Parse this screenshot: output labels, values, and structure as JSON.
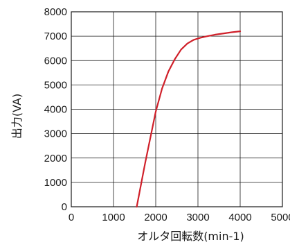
{
  "chart_data": {
    "type": "line",
    "title": "",
    "xlabel": "オルタ回転数(min-1)",
    "ylabel": "出力(VA)",
    "xlim": [
      0,
      5000
    ],
    "ylim": [
      0,
      8000
    ],
    "xticks": [
      0,
      1000,
      2000,
      3000,
      4000,
      5000
    ],
    "yticks": [
      0,
      1000,
      2000,
      3000,
      4000,
      5000,
      6000,
      7000,
      8000
    ],
    "grid": true,
    "series": [
      {
        "color": "#d0202a",
        "x": [
          1550,
          1750,
          2000,
          2150,
          2300,
          2450,
          2600,
          2750,
          2900,
          3050,
          3200,
          3400,
          3600,
          3800,
          4000
        ],
        "y": [
          0,
          1800,
          3900,
          4850,
          5550,
          6050,
          6450,
          6700,
          6850,
          6930,
          6990,
          7060,
          7110,
          7160,
          7200
        ]
      }
    ]
  }
}
